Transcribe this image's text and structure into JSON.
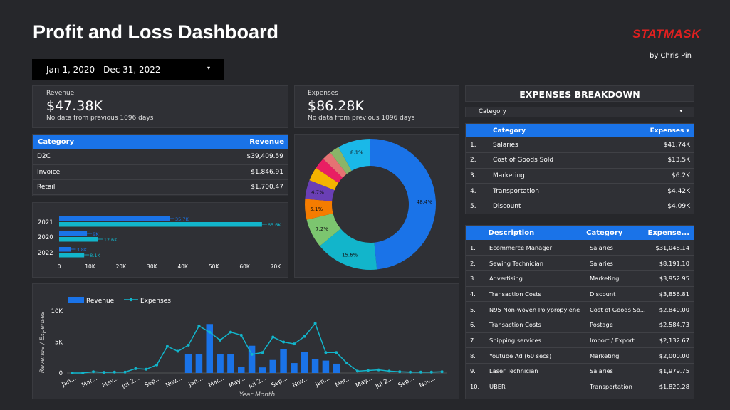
{
  "header": {
    "title": "Profit and Loss Dashboard",
    "logo": "STATMASK",
    "byline": "by Chris Pin"
  },
  "date_range": {
    "value": "Jan 1, 2020 - Dec 31, 2022",
    "caret": "▾"
  },
  "kpis": {
    "revenue": {
      "label": "Revenue",
      "value": "$47.38K",
      "sub": "No data from previous 1096 days"
    },
    "expenses": {
      "label": "Expenses",
      "value": "$86.28K",
      "sub": "No data from previous 1096 days"
    }
  },
  "revenue_table": {
    "headers": [
      "Category",
      "Revenue"
    ],
    "rows": [
      [
        "D2C",
        "$39,409.59"
      ],
      [
        "Invoice",
        "$1,846.91"
      ],
      [
        "Retail",
        "$1,700.47"
      ]
    ]
  },
  "breakdown": {
    "title": "EXPENSES BREAKDOWN",
    "filter_label": "Category",
    "caret": "▾",
    "headers": [
      "Category",
      "Expenses ▾"
    ],
    "rows": [
      [
        "1.",
        "Salaries",
        "$41.74K"
      ],
      [
        "2.",
        "Cost of Goods Sold",
        "$13.5K"
      ],
      [
        "3.",
        "Marketing",
        "$6.2K"
      ],
      [
        "4.",
        "Transportation",
        "$4.42K"
      ],
      [
        "5.",
        "Discount",
        "$4.09K"
      ]
    ]
  },
  "details": {
    "headers": [
      "Description",
      "Category",
      "Expense..."
    ],
    "rows": [
      [
        "1.",
        "Ecommerce Manager",
        "Salaries",
        "$31,048.14"
      ],
      [
        "2.",
        "Sewing Technician",
        "Salaries",
        "$8,191.10"
      ],
      [
        "3.",
        "Advertising",
        "Marketing",
        "$3,952.95"
      ],
      [
        "4.",
        "Transaction Costs",
        "Discount",
        "$3,856.81"
      ],
      [
        "5.",
        "N95 Non-woven Polypropylene",
        "Cost of Goods So...",
        "$2,840.00"
      ],
      [
        "6.",
        "Transaction Costs",
        "Postage",
        "$2,584.73"
      ],
      [
        "7.",
        "Shipping services",
        "Import / Export",
        "$2,132.67"
      ],
      [
        "8.",
        "Youtube Ad (60 secs)",
        "Marketing",
        "$2,000.00"
      ],
      [
        "9.",
        "Laser Technician",
        "Salaries",
        "$1,979.75"
      ],
      [
        "10.",
        "UBER",
        "Transportation",
        "$1,820.28"
      ]
    ]
  },
  "chart_data": [
    {
      "type": "bar",
      "orientation": "horizontal",
      "categories": [
        "2021",
        "2020",
        "2022"
      ],
      "series": [
        {
          "values": [
            35.7,
            9,
            3.8
          ],
          "color": "#1a73e8"
        },
        {
          "values": [
            65.6,
            12.6,
            8.1
          ],
          "color": "#12b5cb"
        }
      ],
      "data_labels": [
        [
          "35.7K",
          "9K",
          "3.8K"
        ],
        [
          "65.6K",
          "12.6K",
          "8.1K"
        ]
      ],
      "xticks": [
        "0",
        "10K",
        "20K",
        "30K",
        "40K",
        "50K",
        "60K",
        "70K"
      ],
      "xlim": [
        0,
        70
      ]
    },
    {
      "type": "pie",
      "donut": true,
      "slices": [
        {
          "value": 48.4,
          "label": "48.4%",
          "color": "#1a73e8"
        },
        {
          "value": 15.6,
          "label": "15.6%",
          "color": "#12b5cb"
        },
        {
          "value": 7.2,
          "label": "7.2%",
          "color": "#7cc56f"
        },
        {
          "value": 5.1,
          "label": "5.1%",
          "color": "#f57c00"
        },
        {
          "value": 4.7,
          "label": "4.7%",
          "color": "#6a3fb5"
        },
        {
          "value": 3.4,
          "label": "",
          "color": "#f4b400"
        },
        {
          "value": 2.8,
          "label": "",
          "color": "#e91e63"
        },
        {
          "value": 2.3,
          "label": "",
          "color": "#e57373"
        },
        {
          "value": 2.4,
          "label": "",
          "color": "#8ab568"
        },
        {
          "value": 8.1,
          "label": "8.1%",
          "color": "#1ab8e8"
        }
      ]
    },
    {
      "type": "bar+line",
      "series": [
        {
          "name": "Revenue",
          "type": "bar",
          "color": "#1a73e8",
          "values": [
            0,
            0,
            0,
            0,
            0,
            0,
            0,
            0,
            0,
            0,
            0,
            3100,
            3100,
            7900,
            3000,
            3000,
            1000,
            4400,
            900,
            2100,
            3800,
            1600,
            3400,
            2200,
            2000,
            1500,
            0,
            0,
            0,
            0,
            0,
            0,
            0,
            0,
            0,
            0
          ]
        },
        {
          "name": "Expenses",
          "type": "line",
          "color": "#12b5cb",
          "values": [
            0,
            0,
            200,
            100,
            150,
            150,
            700,
            600,
            1300,
            4300,
            3500,
            4500,
            7600,
            6600,
            5300,
            6600,
            6100,
            3000,
            3300,
            5800,
            5000,
            4700,
            5900,
            8000,
            3300,
            3300,
            1600,
            300,
            400,
            500,
            300,
            200,
            150,
            150,
            150,
            200
          ]
        }
      ],
      "xticks": [
        "Jan...",
        "Mar...",
        "May...",
        "Jul 2...",
        "Sep...",
        "Nov...",
        "Jan...",
        "Mar...",
        "May...",
        "Jul 2...",
        "Sep...",
        "Nov...",
        "Jan...",
        "Mar...",
        "May...",
        "Jul 2...",
        "Sep...",
        "Nov..."
      ],
      "yticks": [
        "0",
        "5K",
        "10K"
      ],
      "ylim": [
        0,
        10000
      ],
      "xlabel": "Year Month",
      "ylabel": "Revenue / Expenses",
      "legend": "top-left"
    }
  ]
}
